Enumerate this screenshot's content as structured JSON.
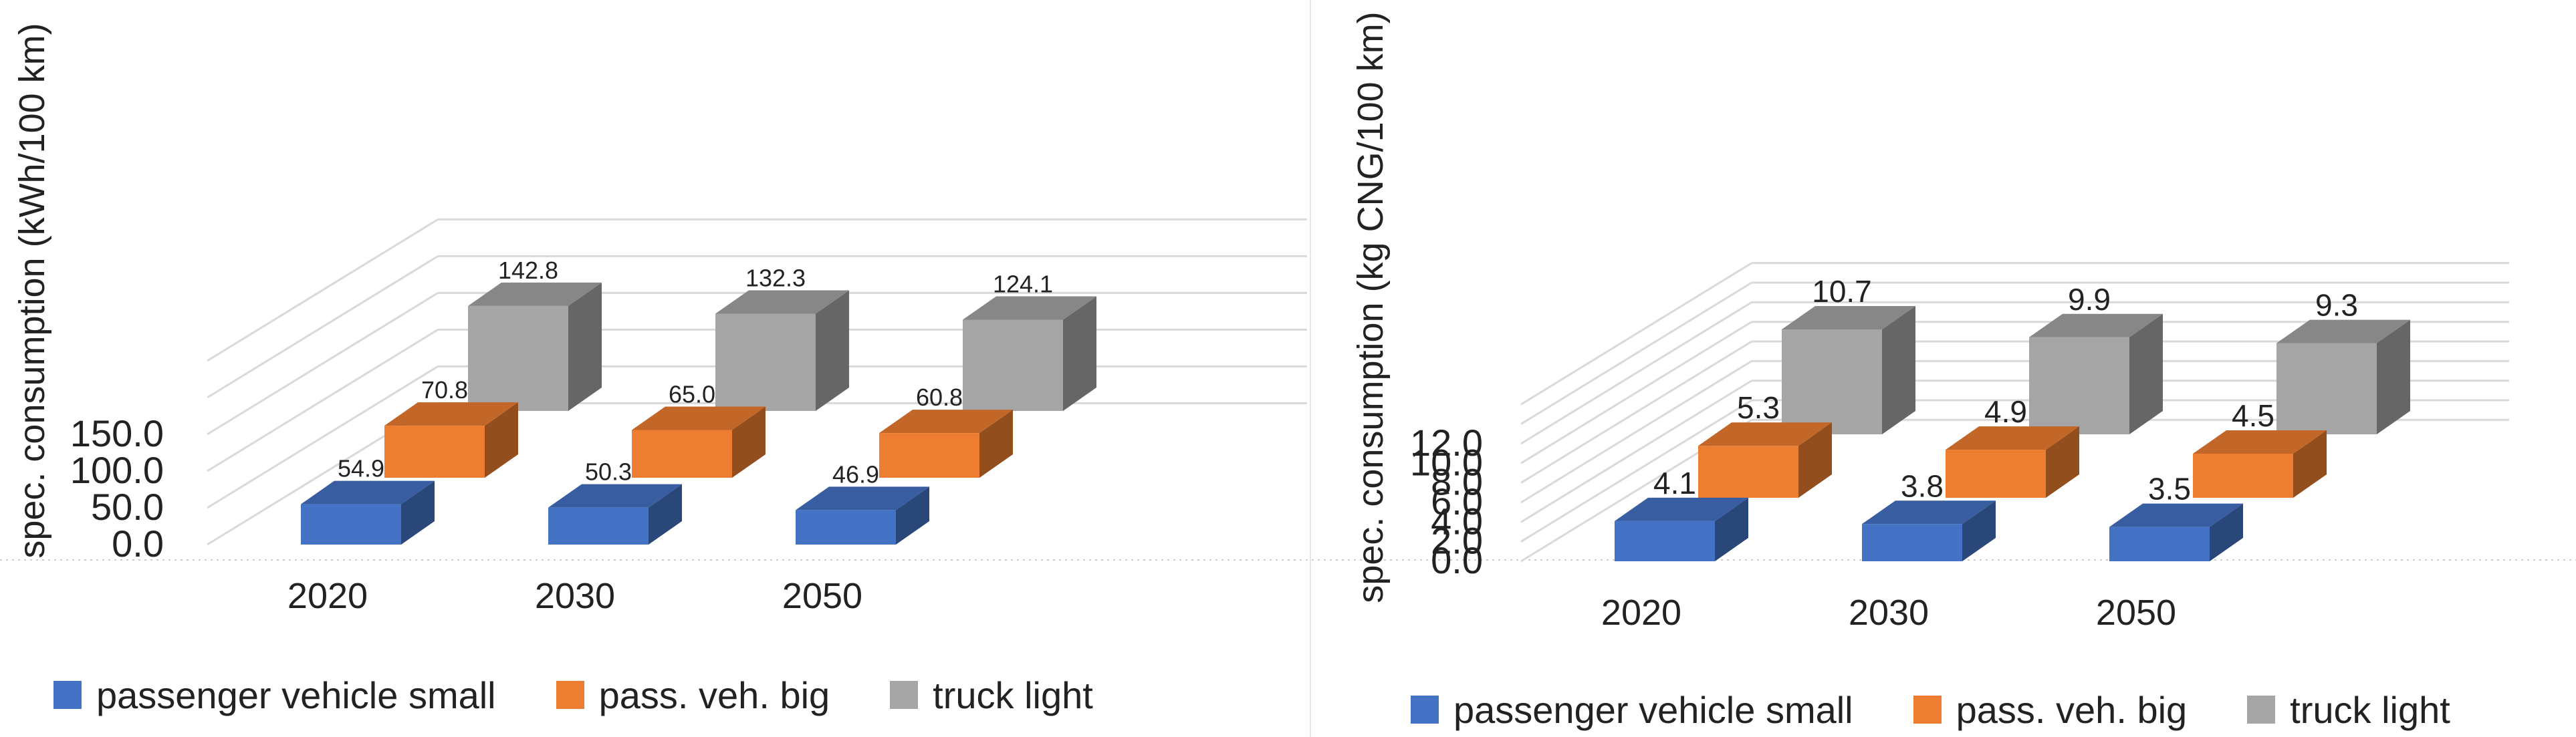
{
  "chart_data": [
    {
      "type": "bar",
      "style": "3d-clustered",
      "title": "",
      "xlabel": "",
      "ylabel": "spec. consumption (kWh/100 km)",
      "categories": [
        "2020",
        "2030",
        "2050"
      ],
      "ylim": [
        0,
        150
      ],
      "yticks": [
        0,
        50,
        100,
        150
      ],
      "ytick_labels": [
        "0.0",
        "50.0",
        "100.0",
        "150.0"
      ],
      "grid": true,
      "legend_position": "bottom",
      "series": [
        {
          "name": "passenger vehicle small",
          "values": [
            54.9,
            50.3,
            46.9
          ],
          "value_labels": [
            "54.9",
            "50.3",
            "46.9"
          ]
        },
        {
          "name": "pass. veh. big",
          "values": [
            70.8,
            65.0,
            60.8
          ],
          "value_labels": [
            "70.8",
            "65.0",
            "60.8"
          ]
        },
        {
          "name": "truck light",
          "values": [
            142.8,
            132.3,
            124.1
          ],
          "value_labels": [
            "142.8",
            "132.3",
            "124.1"
          ]
        }
      ]
    },
    {
      "type": "bar",
      "style": "3d-clustered",
      "title": "",
      "xlabel": "",
      "ylabel": "spec. consumption (kg CNG/100 km)",
      "categories": [
        "2020",
        "2030",
        "2050"
      ],
      "ylim": [
        0,
        12
      ],
      "yticks": [
        0,
        2,
        4,
        6,
        8,
        10,
        12
      ],
      "ytick_labels": [
        "0.0",
        "2.0",
        "4.0",
        "6.0",
        "8.0",
        "10.0",
        "12.0"
      ],
      "grid": true,
      "legend_position": "bottom",
      "series": [
        {
          "name": "passenger vehicle small",
          "values": [
            4.1,
            3.8,
            3.5
          ],
          "value_labels": [
            "4.1",
            "3.8",
            "3.5"
          ]
        },
        {
          "name": "pass. veh. big",
          "values": [
            5.3,
            4.9,
            4.5
          ],
          "value_labels": [
            "5.3",
            "4.9",
            "4.5"
          ]
        },
        {
          "name": "truck light",
          "values": [
            10.7,
            9.9,
            9.3
          ],
          "value_labels": [
            "10.7",
            "9.9",
            "9.3"
          ]
        }
      ]
    }
  ],
  "colors": {
    "passenger vehicle small": "#4472C4",
    "pass. veh. big": "#ED7D31",
    "truck light": "#A5A5A5"
  }
}
